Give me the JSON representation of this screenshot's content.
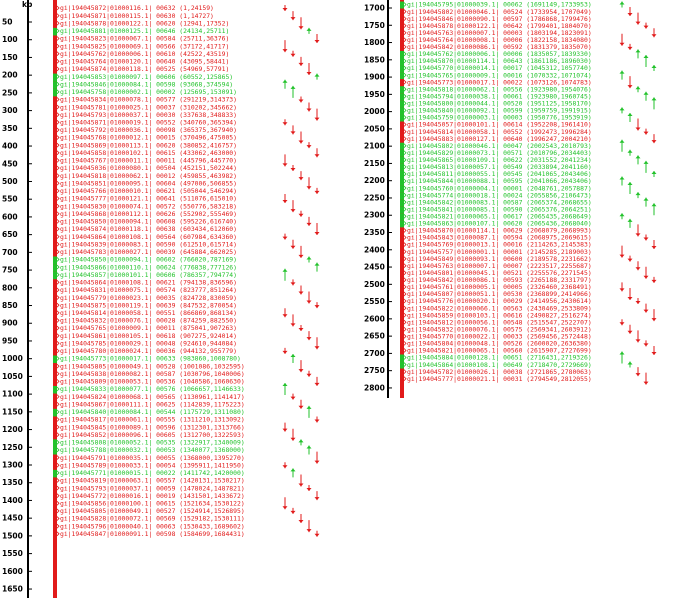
{
  "colors": {
    "forward": "#22c22b",
    "reverse": "#e11a1a",
    "axis": "#000000",
    "bar_edge": "#1e8f1e"
  },
  "panels": [
    {
      "id": "left",
      "axis_top_label": "kb",
      "ticks": [
        "50",
        "100",
        "150",
        "200",
        "250",
        "300",
        "350",
        "400",
        "450",
        "500",
        "550",
        "600",
        "650",
        "700",
        "750",
        "800",
        "850",
        "900",
        "950",
        "1000",
        "1050",
        "1100",
        "1150",
        "1200",
        "1250",
        "1300",
        "1350",
        "1400",
        "1450",
        "1500",
        "1550",
        "1600",
        "1650"
      ],
      "rows": [
        {
          "t": "gi|194045872|01000116.1| 00632 (1,24159)",
          "s": "r"
        },
        {
          "t": "gi|194045871|01000115.1| 00630 (1,14727)",
          "s": "r"
        },
        {
          "t": "gi|194045878|01000122.1| 00620 (12941,17352)",
          "s": "r"
        },
        {
          "t": "gi|194045881|01000125.1| 00646 (24134,25711)",
          "s": "f"
        },
        {
          "t": "gi|194045823|01000067.1| 00584 (25711,36376)",
          "s": "r"
        },
        {
          "t": "gi|194045825|01000069.1| 00566 (37172,41717)",
          "s": "r"
        },
        {
          "t": "gi|194045762|01000006.1| 00610 (42522,43519)",
          "s": "r"
        },
        {
          "t": "gi|194045764|01000120.1| 00640 (43095,58441)",
          "s": "r"
        },
        {
          "t": "gi|194045874|01000118.1| 00525 (54969,57791)",
          "s": "r"
        },
        {
          "t": "gi|194045853|01000097.1| 00606 (60552,125865)",
          "s": "f"
        },
        {
          "t": "gi|194045846|01000084.1| 00598 (93068,374594)",
          "s": "f"
        },
        {
          "t": "gi|194045758|01000002.1| 00002 (125695,153091)",
          "s": "f"
        },
        {
          "t": "gi|194045834|01000078.1| 00577 (291219,314373)",
          "s": "r"
        },
        {
          "t": "gi|194045781|01000025.1| 00037 (310202,345662)",
          "s": "r"
        },
        {
          "t": "gi|194045793|01000037.1| 00030 (337638,348833)",
          "s": "r"
        },
        {
          "t": "gi|194045871|01000019.1| 00552 (340760,365394)",
          "s": "r"
        },
        {
          "t": "gi|194045792|01000036.1| 00098 (365375,367940)",
          "s": "r"
        },
        {
          "t": "gi|194045768|01000012.1| 00015 (370496,475005)",
          "s": "r"
        },
        {
          "t": "gi|194045869|01000113.1| 00620 (380852,416757)",
          "s": "r"
        },
        {
          "t": "gi|194045858|01000102.1| 00615 (433062,463000)",
          "s": "r"
        },
        {
          "t": "gi|194045767|01000011.1| 00011 (445796,445770)",
          "s": "r"
        },
        {
          "t": "gi|194045036|01000080.1| 00504 (452151,502244)",
          "s": "r"
        },
        {
          "t": "gi|194045818|01000062.1| 00012 (459855,463982)",
          "s": "r"
        },
        {
          "t": "gi|194045851|01000095.1| 00604 (497006,506855)",
          "s": "r"
        },
        {
          "t": "gi|194045766|01000010.1| 00621 (505044,546294)",
          "s": "r"
        },
        {
          "t": "gi|194045777|01000121.1| 00641 (511076,615010)",
          "s": "r"
        },
        {
          "t": "gi|194045830|01000074.1| 00572 (550776,583218)",
          "s": "r"
        },
        {
          "t": "gi|194045868|01000112.1| 00626 (552902,555469)",
          "s": "r"
        },
        {
          "t": "gi|194045850|01000094.1| 00608 (595226,616740)",
          "s": "r"
        },
        {
          "t": "gi|194045874|01000118.1| 00638 (603434,612060)",
          "s": "r"
        },
        {
          "t": "gi|194045864|01000108.1| 00564 (607984,634360)",
          "s": "r"
        },
        {
          "t": "gi|194045839|01000083.1| 00590 (612510,615714)",
          "s": "r"
        },
        {
          "t": "gi|194045783|01000027.1| 00039 (645884,662025)",
          "s": "r"
        },
        {
          "t": "gi|194045850|01000094.1| 00602 (766020,787169)",
          "s": "f"
        },
        {
          "t": "gi|194045866|01000110.1| 00624 (776838,777126)",
          "s": "f"
        },
        {
          "t": "gi|194045857|01000101.1| 00606 (786357,794774)",
          "s": "f"
        },
        {
          "t": "gi|194045864|01000108.1| 00621 (794138,836596)",
          "s": "r"
        },
        {
          "t": "gi|194045831|01000075.1| 00574 (823777,851264)",
          "s": "r"
        },
        {
          "t": "gi|194045779|01000023.1| 00035 (824728,830059)",
          "s": "r"
        },
        {
          "t": "gi|194045875|01000119.1| 00639 (847532,870054)",
          "s": "r"
        },
        {
          "t": "gi|194045814|01000058.1| 00551 (866869,868134)",
          "s": "r"
        },
        {
          "t": "gi|194045832|01000076.1| 00028 (874259,882550)",
          "s": "r"
        },
        {
          "t": "gi|194045765|01000009.1| 00011 (875041,907263)",
          "s": "r"
        },
        {
          "t": "gi|194045861|01000105.1| 00618 (907275,924014)",
          "s": "r"
        },
        {
          "t": "gi|194045785|01000029.1| 00048 (924610,944084)",
          "s": "r"
        },
        {
          "t": "gi|194045780|01000024.1| 00036 (944132,955779)",
          "s": "r"
        },
        {
          "t": "gi|194045773|01000017.1| 00633 (983860,1008780)",
          "s": "f"
        },
        {
          "t": "gi|194045805|01000049.1| 00528 (1001086,1032595)",
          "s": "r"
        },
        {
          "t": "gi|194045838|01000082.1| 00587 (1030796,1040006)",
          "s": "r"
        },
        {
          "t": "gi|194045809|01000053.1| 00536 (1040586,1060630)",
          "s": "r"
        },
        {
          "t": "gi|194045833|01000077.1| 00576 (1066657,1146633)",
          "s": "f"
        },
        {
          "t": "gi|194045824|01000068.1| 00565 (1130961,1141417)",
          "s": "r"
        },
        {
          "t": "gi|194045867|01000111.1| 00625 (1142839,1175223)",
          "s": "r"
        },
        {
          "t": "gi|194045840|01000084.1| 00544 (1175729,1311080)",
          "s": "f"
        },
        {
          "t": "gi|194045817|01000061.1| 00555 (1311210,1313092)",
          "s": "r"
        },
        {
          "t": "gi|194045845|01000089.1| 00596 (1312301,1313766)",
          "s": "r"
        },
        {
          "t": "gi|194045852|01000096.1| 00605 (1312700,1322593)",
          "s": "r"
        },
        {
          "t": "gi|194045808|01000052.1| 00535 (1322917,1340009)",
          "s": "f"
        },
        {
          "t": "gi|194045788|01000032.1| 00053 (1340077,1368000)",
          "s": "f"
        },
        {
          "t": "gi|194045791|01000035.1| 00055 (1368000,1395270)",
          "s": "r"
        },
        {
          "t": "gi|194045789|01000033.1| 00054 (1395911,1411950)",
          "s": "r"
        },
        {
          "t": "gi|194045771|01000015.1| 00022 (1411742,1420000)",
          "s": "f"
        },
        {
          "t": "gi|194045819|01000063.1| 00557 (1420131,1530217)",
          "s": "r"
        },
        {
          "t": "gi|194045793|01000037.1| 00059 (1478024,1487821)",
          "s": "r"
        },
        {
          "t": "gi|194045772|01000016.1| 00019 (1431501,1433672)",
          "s": "r"
        },
        {
          "t": "gi|194045856|01000100.1| 00615 (1521634,1530122)",
          "s": "r"
        },
        {
          "t": "gi|194045805|01000049.1| 00527 (1524914,1526895)",
          "s": "r"
        },
        {
          "t": "gi|194045828|01000072.1| 00569 (1529182,1530111)",
          "s": "r"
        },
        {
          "t": "gi|194045796|01000040.1| 00063 (1530433,1689602)",
          "s": "r"
        },
        {
          "t": "gi|194045847|01000091.1| 00598 (1584699,1684431)",
          "s": "r"
        }
      ]
    },
    {
      "id": "right",
      "axis_top_label": "",
      "ticks": [
        "1700",
        "1750",
        "1800",
        "1850",
        "1900",
        "1950",
        "2000",
        "2050",
        "2100",
        "2150",
        "2200",
        "2250",
        "2300",
        "2350",
        "2400",
        "2450",
        "2500",
        "2550",
        "2600",
        "2650",
        "2700",
        "2750",
        "2800"
      ],
      "rows": [
        {
          "t": "gi|194045795|01000039.1| 00062 (1691149,1733953)",
          "s": "f"
        },
        {
          "t": "gi|194045802|01000046.1| 00524 (1733954,1707049)",
          "s": "r"
        },
        {
          "t": "gi|194045846|01000090.1| 00597 (1786868,1799476)",
          "s": "r"
        },
        {
          "t": "gi|194045878|01000122.1| 00642 (1799401,1804070)",
          "s": "r"
        },
        {
          "t": "gi|194045763|01000007.1| 00003 (1803194,1823091)",
          "s": "r"
        },
        {
          "t": "gi|194045764|01000008.1| 00006 (1822158,1834080)",
          "s": "r"
        },
        {
          "t": "gi|194045842|01000086.1| 00592 (1831379,1835070)",
          "s": "r"
        },
        {
          "t": "gi|194045762|01000006.1| 00006 (1835057,1839330)",
          "s": "f"
        },
        {
          "t": "gi|194045870|01000114.1| 00643 (1861186,1896030)",
          "s": "f"
        },
        {
          "t": "gi|194045770|01000014.1| 00017 (1045312,1057740)",
          "s": "f"
        },
        {
          "t": "gi|194045765|01000009.1| 00016 (1070332,1071074)",
          "s": "f"
        },
        {
          "t": "gi|194045773|01000017.1| 00022 (1073126,1074783)",
          "s": "r"
        },
        {
          "t": "gi|194045818|01000062.1| 00556 (1923980,1954076)",
          "s": "f"
        },
        {
          "t": "gi|194045794|01000038.1| 00061 (1923980,1960745)",
          "s": "f"
        },
        {
          "t": "gi|194045800|01000044.1| 00520 (1951125,1958170)",
          "s": "f"
        },
        {
          "t": "gi|194045840|01000092.1| 00599 (1959759,1991915)",
          "s": "f"
        },
        {
          "t": "gi|194045759|01000003.1| 00003 (1950776,1953919)",
          "s": "f"
        },
        {
          "t": "gi|194045057|01000101.1| 00614 (1952208,1961410)",
          "s": "r"
        },
        {
          "t": "gi|194045814|01000058.1| 00552 (1992473,1996284)",
          "s": "r"
        },
        {
          "t": "gi|194045883|01000127.1| 00640 (1996247,2004210)",
          "s": "r"
        },
        {
          "t": "gi|194045802|01000046.1| 00047 (2002543,2010793)",
          "s": "f"
        },
        {
          "t": "gi|194045829|01000073.1| 00571 (2010796,2034403)",
          "s": "f"
        },
        {
          "t": "gi|194045865|01000109.1| 00622 (2031552,2041234)",
          "s": "f"
        },
        {
          "t": "gi|194045813|01000057.1| 00549 (2033894,2041160)",
          "s": "f"
        },
        {
          "t": "gi|194045811|01000055.1| 00545 (2041065,2043406)",
          "s": "f"
        },
        {
          "t": "gi|194045844|01000088.1| 00595 (2041066,2043406)",
          "s": "f"
        },
        {
          "t": "gi|194045760|01000004.1| 00001 (2048761,2057887)",
          "s": "f"
        },
        {
          "t": "gi|194045774|01000018.1| 00024 (2055856,2106473)",
          "s": "f"
        },
        {
          "t": "gi|194045842|01000083.1| 00587 (2065374,2068655)",
          "s": "f"
        },
        {
          "t": "gi|194045841|01000085.1| 00590 (2065376,2064251)",
          "s": "f"
        },
        {
          "t": "gi|194045821|01000065.1| 00617 (2065435,2068649)",
          "s": "f"
        },
        {
          "t": "gi|194045863|01000107.1| 00620 (2065436,2068040)",
          "s": "f"
        },
        {
          "t": "gi|194045870|01000114.1| 00629 (2068079,2068993)",
          "s": "r"
        },
        {
          "t": "gi|194045843|01000087.1| 00594 (2068975,2069615)",
          "s": "r"
        },
        {
          "t": "gi|194045769|01000013.1| 00016 (2114263,2145383)",
          "s": "r"
        },
        {
          "t": "gi|194045757|01000001.1| 00001 (2145285,2189003)",
          "s": "r"
        },
        {
          "t": "gi|194045849|01000093.1| 00600 (2189578,2231662)",
          "s": "r"
        },
        {
          "t": "gi|194045763|01000007.1| 00007 (2223517,2255687)",
          "s": "r"
        },
        {
          "t": "gi|194045801|01000045.1| 00521 (2255576,2271545)",
          "s": "r"
        },
        {
          "t": "gi|194045842|01000086.1| 00593 (2265188,2331797)",
          "s": "r"
        },
        {
          "t": "gi|194045761|01000005.1| 00005 (2326460,2368491)",
          "s": "r"
        },
        {
          "t": "gi|194045807|01000051.1| 00530 (2368899,2414966)",
          "s": "r"
        },
        {
          "t": "gi|194045776|01000020.1| 00029 (2414956,2430614)",
          "s": "r"
        },
        {
          "t": "gi|194045822|01000066.1| 00563 (2430469,2533809)",
          "s": "r"
        },
        {
          "t": "gi|194045859|01000103.1| 00616 (2490827,2516274)",
          "s": "r"
        },
        {
          "t": "gi|194045812|01000056.1| 00548 (2515547,2522707)",
          "s": "r"
        },
        {
          "t": "gi|194045832|01000076.1| 00575 (2569341,2603912)",
          "s": "r"
        },
        {
          "t": "gi|194045770|01000022.1| 00033 (2569456,2572448)",
          "s": "r"
        },
        {
          "t": "gi|194045804|01000048.1| 00526 (2600020,2636380)",
          "s": "r"
        },
        {
          "t": "gi|194045821|01000065.1| 00560 (2615907,2727699)",
          "s": "r"
        },
        {
          "t": "gi|194045884|01000128.1| 00651 (2716431,2719326)",
          "s": "f"
        },
        {
          "t": "gi|194045864|01000108.1| 00649 (2718470,2729669)",
          "s": "f"
        },
        {
          "t": "gi|194045782|01000026.1| 00038 (2721865,2780063)",
          "s": "r"
        },
        {
          "t": "gi|194045777|01000021.1| 00031 (2794549,2812055)",
          "s": "r"
        }
      ]
    }
  ]
}
